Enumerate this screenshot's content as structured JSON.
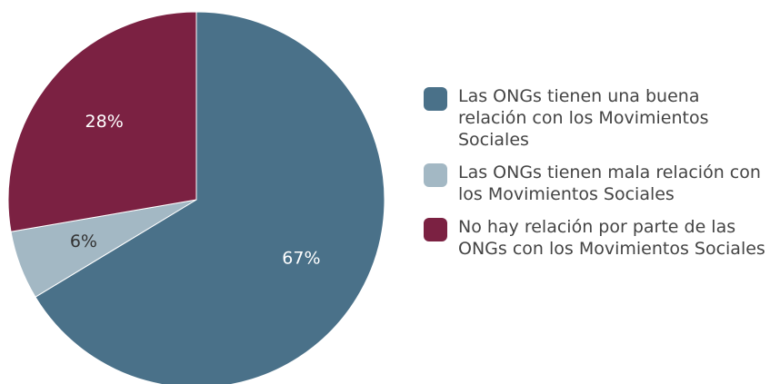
{
  "chart_data": {
    "type": "pie",
    "categories": [
      "Las ONGs tienen una buena relación con los Movimientos Sociales",
      "Las ONGs tienen mala relación con los Movimientos Sociales",
      "No hay relación por parte de las ONGs con los Movimientos Sociales"
    ],
    "values": [
      67,
      6,
      28
    ],
    "value_labels": [
      "67%",
      "6%",
      "28%"
    ],
    "colors": [
      "#4a7189",
      "#a3b8c4",
      "#7b2142"
    ],
    "legend": "right"
  }
}
